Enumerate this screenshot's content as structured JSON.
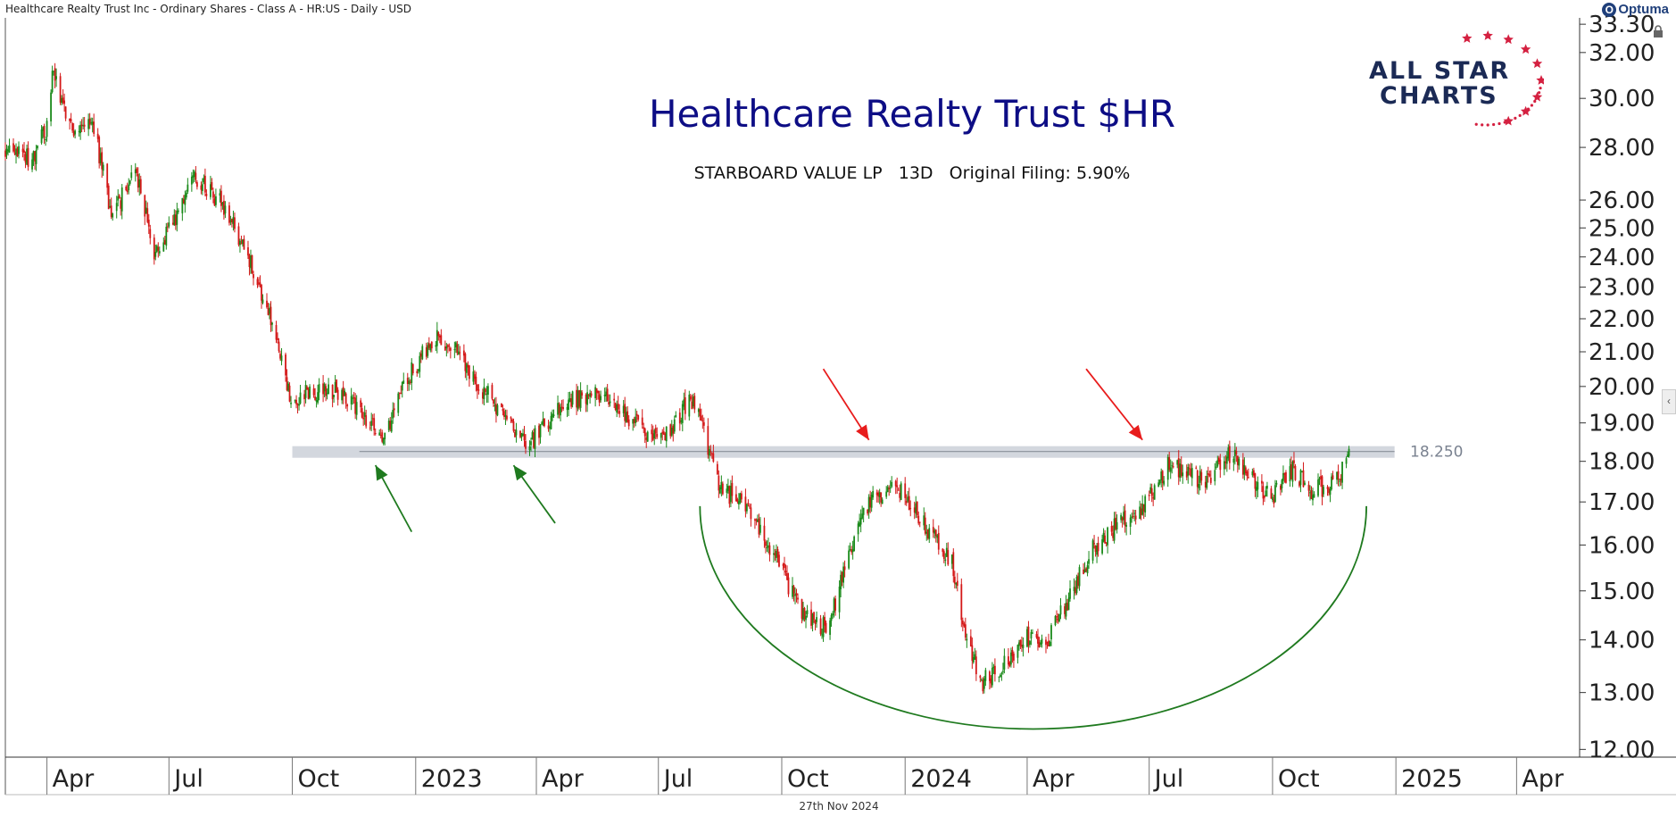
{
  "header": {
    "instrument": "Healthcare Realty Trust Inc - Ordinary Shares - Class A - HR:US - Daily - USD",
    "brand": "Optuma"
  },
  "logo": {
    "line1": "ALL STAR",
    "line2": "CHARTS"
  },
  "footer": {
    "date": "27th Nov 2024"
  },
  "colors": {
    "up": "#1a8a1a",
    "down": "#d41818",
    "support_band": "#d3d7de",
    "annotation_green": "#1f7a1f",
    "annotation_red": "#e81c1c",
    "title": "#0d0d85"
  },
  "icons": {
    "lock": "lock-icon",
    "collapse": "chevron-left-icon"
  },
  "chart_data": {
    "type": "candlestick",
    "title": "Healthcare Realty Trust $HR",
    "subtitle": "STARBOARD VALUE LP   13D   Original Filing: 5.90%",
    "y_scale": "log",
    "ylim": [
      11.9,
      33.6
    ],
    "y_ticks": [
      "33.30",
      "32.00",
      "30.00",
      "28.00",
      "26.00",
      "25.00",
      "24.00",
      "23.00",
      "22.00",
      "21.00",
      "20.00",
      "19.00",
      "18.00",
      "17.00",
      "16.00",
      "15.00",
      "14.00",
      "13.00",
      "12.00"
    ],
    "x_ticks": [
      "Apr",
      "Jul",
      "Oct",
      "2023",
      "Apr",
      "Jul",
      "Oct",
      "2024",
      "Apr",
      "Jul",
      "Oct",
      "2025",
      "Apr"
    ],
    "x_tick_dates": [
      "2022-04-01",
      "2022-07-01",
      "2022-10-01",
      "2023-01-01",
      "2023-04-01",
      "2023-07-01",
      "2023-10-01",
      "2024-01-01",
      "2024-04-01",
      "2024-07-01",
      "2024-10-01",
      "2025-01-01",
      "2025-04-01"
    ],
    "x_start": "2022-03-01",
    "x_end": "2025-05-18",
    "price_path": [
      [
        "2022-03-01",
        27.9
      ],
      [
        "2022-03-20",
        27.5
      ],
      [
        "2022-04-01",
        28.8
      ],
      [
        "2022-04-05",
        31.3
      ],
      [
        "2022-04-20",
        28.6
      ],
      [
        "2022-05-05",
        29.0
      ],
      [
        "2022-05-20",
        25.3
      ],
      [
        "2022-06-05",
        27.3
      ],
      [
        "2022-06-20",
        24.2
      ],
      [
        "2022-07-05",
        25.2
      ],
      [
        "2022-07-20",
        26.8
      ],
      [
        "2022-08-10",
        25.8
      ],
      [
        "2022-08-25",
        24.5
      ],
      [
        "2022-09-15",
        22.0
      ],
      [
        "2022-09-30",
        19.6
      ],
      [
        "2022-10-15",
        19.9
      ],
      [
        "2022-11-01",
        19.9
      ],
      [
        "2022-11-20",
        19.4
      ],
      [
        "2022-12-08",
        18.5
      ],
      [
        "2022-12-25",
        20.2
      ],
      [
        "2023-01-15",
        21.4
      ],
      [
        "2023-02-01",
        21.0
      ],
      [
        "2023-02-20",
        19.9
      ],
      [
        "2023-03-10",
        19.2
      ],
      [
        "2023-03-25",
        18.4
      ],
      [
        "2023-04-20",
        19.5
      ],
      [
        "2023-05-15",
        19.8
      ],
      [
        "2023-06-01",
        19.4
      ],
      [
        "2023-06-20",
        18.8
      ],
      [
        "2023-07-05",
        18.6
      ],
      [
        "2023-07-25",
        19.7
      ],
      [
        "2023-08-05",
        18.7
      ],
      [
        "2023-08-15",
        17.3
      ],
      [
        "2023-09-05",
        17.0
      ],
      [
        "2023-09-25",
        15.8
      ],
      [
        "2023-10-15",
        14.6
      ],
      [
        "2023-11-05",
        14.2
      ],
      [
        "2023-11-20",
        15.9
      ],
      [
        "2023-12-05",
        17.0
      ],
      [
        "2023-12-25",
        17.4
      ],
      [
        "2024-01-15",
        16.5
      ],
      [
        "2024-02-05",
        15.6
      ],
      [
        "2024-02-15",
        14.0
      ],
      [
        "2024-02-28",
        13.2
      ],
      [
        "2024-03-15",
        13.5
      ],
      [
        "2024-04-01",
        14.1
      ],
      [
        "2024-04-15",
        13.9
      ],
      [
        "2024-05-01",
        14.8
      ],
      [
        "2024-05-20",
        15.9
      ],
      [
        "2024-06-05",
        16.4
      ],
      [
        "2024-06-25",
        16.8
      ],
      [
        "2024-07-15",
        17.9
      ],
      [
        "2024-08-10",
        17.5
      ],
      [
        "2024-08-30",
        18.2
      ],
      [
        "2024-09-15",
        17.6
      ],
      [
        "2024-09-30",
        17.1
      ],
      [
        "2024-10-15",
        17.8
      ],
      [
        "2024-10-30",
        17.3
      ],
      [
        "2024-11-15",
        17.4
      ],
      [
        "2024-11-27",
        18.1
      ]
    ],
    "support_level": {
      "value": 18.25,
      "label": "18.250",
      "start": "2022-10-01",
      "end": "2024-12-31"
    },
    "arrows": [
      {
        "color": "green",
        "from": [
          "2022-12-29",
          16.3
        ],
        "to": [
          "2022-12-02",
          17.9
        ]
      },
      {
        "color": "green",
        "from": [
          "2023-04-15",
          16.5
        ],
        "to": [
          "2023-03-15",
          17.9
        ]
      },
      {
        "color": "red",
        "from": [
          "2023-11-01",
          20.5
        ],
        "to": [
          "2023-12-05",
          18.55
        ]
      },
      {
        "color": "red",
        "from": [
          "2024-05-15",
          20.5
        ],
        "to": [
          "2024-06-26",
          18.55
        ]
      }
    ],
    "arc": {
      "start": [
        "2023-08-01",
        16.9
      ],
      "bottom": [
        "2024-03-22",
        12.35
      ],
      "end": [
        "2024-12-10",
        16.9
      ]
    }
  }
}
